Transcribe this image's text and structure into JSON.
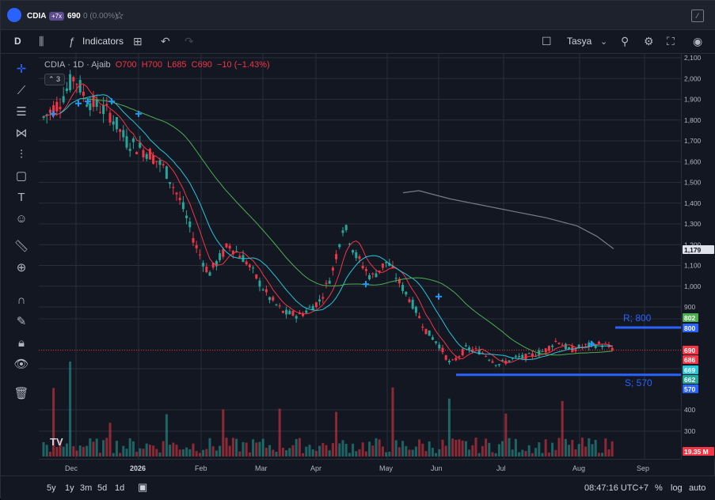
{
  "titlebar": {
    "symbol": "CDIA",
    "badge": "+7x",
    "price": "690",
    "change": "0 (0.00%)"
  },
  "toolbar": {
    "interval": "D",
    "indicators_label": "Indicators",
    "layout_name": "Tasya"
  },
  "legend": {
    "symbol": "CDIA",
    "interval": "1D",
    "exchange": "Ajaib",
    "open": "O700",
    "high": "H700",
    "low": "L685",
    "close": "C690",
    "change": "−10 (−1.43%)",
    "indicator_count": "3"
  },
  "bottombar": {
    "ranges": [
      "5y",
      "1y",
      "3m",
      "5d",
      "1d"
    ],
    "time": "08:47:16 UTC+7",
    "percent": "%",
    "log": "log",
    "auto": "auto"
  },
  "colors": {
    "up": "#26a69a",
    "down": "#f23645",
    "ma_fast": "#f23645",
    "ma_mid": "#26c6da",
    "ma_slow": "#4caf50",
    "ma_long": "#787b86",
    "hline": "#2962ff"
  },
  "chart_data": {
    "type": "candlestick",
    "title": "CDIA 1D Ajaib",
    "y_axis": {
      "min": 0,
      "max": 2100,
      "ticks": [
        2100,
        2000,
        1900,
        1800,
        1700,
        1600,
        1500,
        1400,
        1300,
        1200,
        1100,
        1000,
        900,
        400,
        300
      ],
      "tick_labels": [
        "2,100",
        "2,000",
        "1,900",
        "1,800",
        "1,700",
        "1,600",
        "1,500",
        "1,400",
        "1,300",
        "1,200",
        "1,100",
        "1,000",
        "900",
        "400",
        "300"
      ]
    },
    "x_axis": {
      "labels": [
        "Dec",
        "2026",
        "Feb",
        "Mar",
        "Apr",
        "May",
        "Jun",
        "Jul",
        "Aug",
        "Sep"
      ]
    },
    "price_labels": [
      {
        "text": "1,179",
        "value": 1179,
        "color": "#e0e3eb",
        "text_color": "#131722"
      },
      {
        "text": "802",
        "value": 802,
        "color": "#4caf50",
        "text_color": "#ffffff"
      },
      {
        "text": "800",
        "value": 800,
        "color": "#2962ff",
        "text_color": "#ffffff"
      },
      {
        "text": "690",
        "value": 690,
        "color": "#f23645",
        "text_color": "#ffffff"
      },
      {
        "text": "686",
        "value": 686,
        "color": "#f23645",
        "text_color": "#ffffff"
      },
      {
        "text": "669",
        "value": 669,
        "color": "#26c6da",
        "text_color": "#ffffff"
      },
      {
        "text": "662",
        "value": 662,
        "color": "#26a69a",
        "text_color": "#ffffff"
      },
      {
        "text": "570",
        "value": 570,
        "color": "#2962ff",
        "text_color": "#ffffff"
      },
      {
        "text": "19.35 M",
        "value": null,
        "color": "#f23645",
        "text_color": "#ffffff"
      }
    ],
    "annotations": [
      {
        "text": "R; 800",
        "value": 800
      },
      {
        "text": "S; 570",
        "value": 570
      }
    ]
  }
}
